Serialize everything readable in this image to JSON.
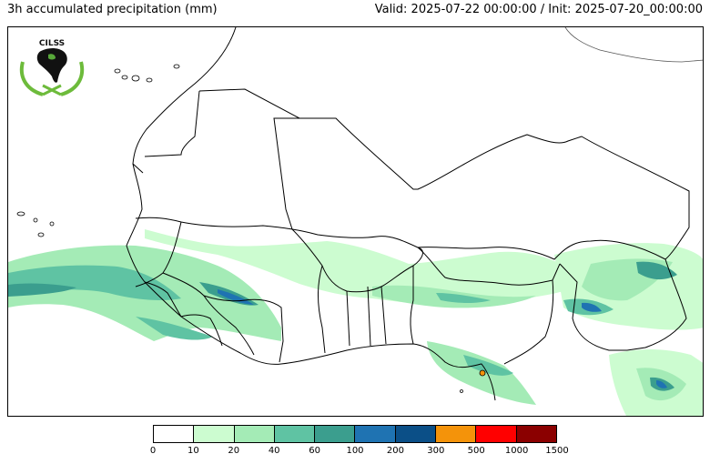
{
  "header": {
    "title": "3h accumulated precipitation (mm)",
    "valid": "Valid: 2025-07-22 00:00:00 / Init: 2025-07-20_00:00:00"
  },
  "logo": {
    "text": "CILSS",
    "colors": {
      "wreath": "#6dbb3b",
      "continent": "#111111",
      "highlight": "#58a83a"
    }
  },
  "colorbar": {
    "colors": [
      "#ffffff",
      "#ccfcd0",
      "#a4ebb6",
      "#5fc3a3",
      "#3b9e8e",
      "#1f73b2",
      "#0b4f87",
      "#f4930a",
      "#ff0000",
      "#8b0000"
    ],
    "ticks": [
      "0",
      "10",
      "20",
      "40",
      "60",
      "100",
      "200",
      "300",
      "500",
      "1000",
      "1500"
    ]
  }
}
